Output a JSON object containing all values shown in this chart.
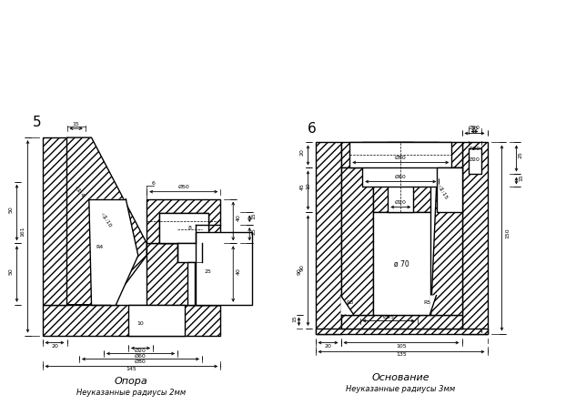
{
  "bg_color": "#ffffff",
  "lw": 1.0,
  "tlw": 0.5,
  "H": "////",
  "title_5": "Опора",
  "sub_5": "Неуказанные радиусы 2мм",
  "title_6": "Основание",
  "sub_6": "Неуказанные радиусы 3мм",
  "num_5": "5",
  "num_6": "6"
}
